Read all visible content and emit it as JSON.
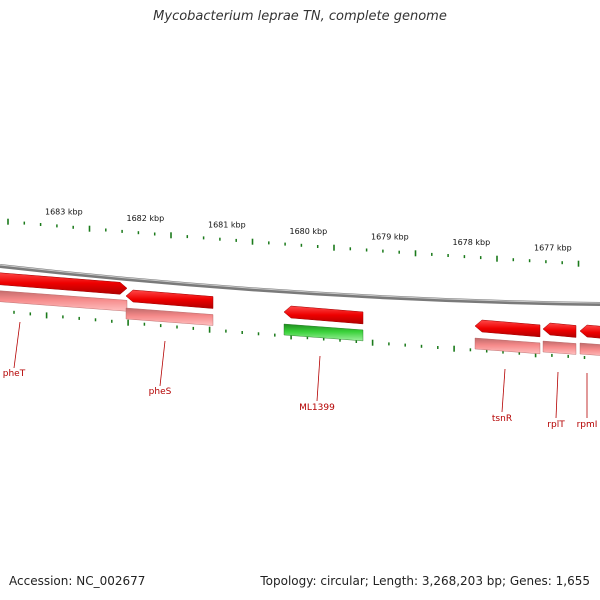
{
  "title": "Mycobacterium leprae TN, complete genome",
  "footer": {
    "accession": "Accession: NC_002677",
    "summary": "Topology: circular; Length: 3,268,203 bp; Genes: 1,655"
  },
  "scale": {
    "unit": "kbp",
    "ticks": [
      {
        "kbp": 1683,
        "label": "1683 kbp"
      },
      {
        "kbp": 1682,
        "label": "1682 kbp"
      },
      {
        "kbp": 1681,
        "label": "1681 kbp"
      },
      {
        "kbp": 1680,
        "label": "1680 kbp"
      },
      {
        "kbp": 1679,
        "label": "1679 kbp"
      },
      {
        "kbp": 1678,
        "label": "1678 kbp"
      },
      {
        "kbp": 1677,
        "label": "1677 kbp"
      }
    ]
  },
  "genes": [
    {
      "name": "pheT",
      "feature_color": "#ff0000",
      "protein_color": "#f08080"
    },
    {
      "name": "pheS",
      "feature_color": "#ff0000",
      "protein_color": "#f08080"
    },
    {
      "name": "ML1399",
      "feature_color": "#ff0000",
      "protein_color": "#33cc33"
    },
    {
      "name": "tsnR",
      "feature_color": "#ff0000",
      "protein_color": "#f08080"
    },
    {
      "name": "rplT",
      "feature_color": "#ff0000",
      "protein_color": "#f08080"
    },
    {
      "name": "rpmI",
      "feature_color": "#ff0000",
      "protein_color": "#f08080"
    }
  ],
  "colors": {
    "backbone": "#8c8c8c",
    "tick_marks": "#1a7a1a",
    "label_text": "#b40000"
  }
}
